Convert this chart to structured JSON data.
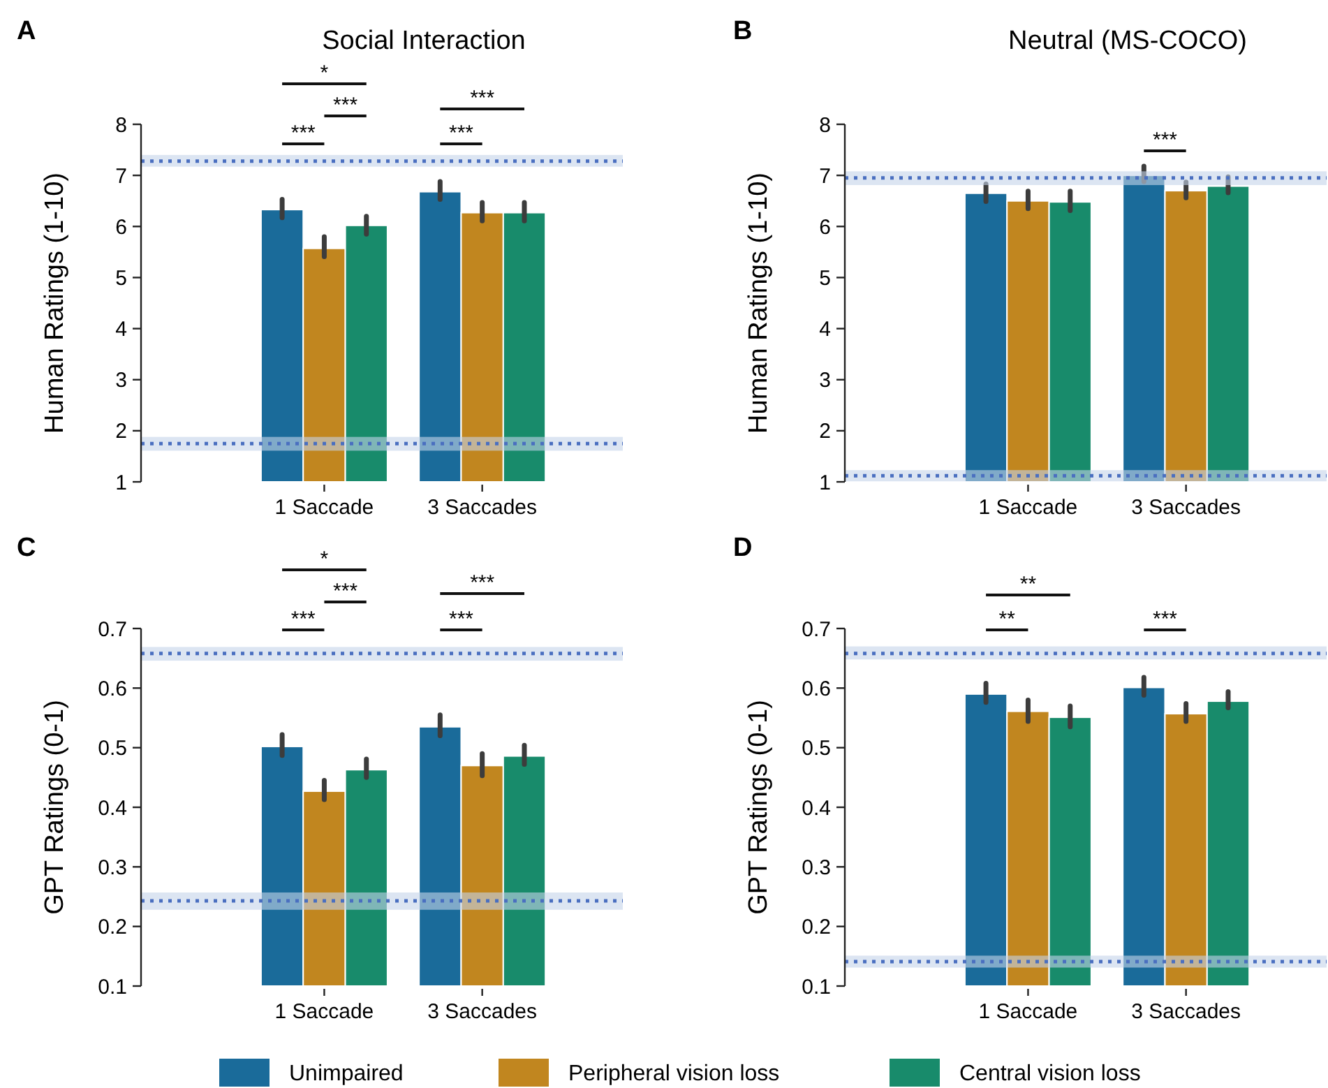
{
  "chart_data": [
    {
      "type": "bar",
      "title": "Social Interaction",
      "ylabel": "Human Ratings (1-10)",
      "categories": [
        "1 Saccade",
        "3 Saccades"
      ],
      "ylim": [
        1,
        8
      ],
      "yticks": [
        1,
        2,
        3,
        4,
        5,
        6,
        7,
        8
      ],
      "legend": "bottom",
      "grid": false,
      "series": [
        {
          "name": "Unimpaired",
          "color": "#1a6b9a",
          "values": [
            6.33,
            6.68
          ],
          "errors": [
            [
              6.17,
              6.53
            ],
            [
              6.53,
              6.88
            ]
          ]
        },
        {
          "name": "Peripheral vision loss",
          "color": "#c1861f",
          "values": [
            5.57,
            6.27
          ],
          "errors": [
            [
              5.41,
              5.8
            ],
            [
              6.11,
              6.47
            ]
          ]
        },
        {
          "name": "Central vision loss",
          "color": "#188b6b",
          "values": [
            6.02,
            6.27
          ],
          "errors": [
            [
              5.85,
              6.2
            ],
            [
              6.11,
              6.47
            ]
          ]
        }
      ],
      "ref_lines": [
        {
          "axis": "y",
          "value": 7.28,
          "color": "#4a6fc0",
          "line_style": "dotted"
        },
        {
          "axis": "y",
          "value": 1.75,
          "color": "#4a6fc0",
          "line_style": "dotted"
        }
      ],
      "bands": [
        {
          "axis": "y",
          "from": 7.17,
          "to": 7.4,
          "color": "#c5d3ea"
        },
        {
          "axis": "y",
          "from": 1.61,
          "to": 1.88,
          "color": "#c5d3ea"
        }
      ],
      "annotations": [
        "A",
        "***",
        "***",
        "*",
        "***",
        "***"
      ]
    },
    {
      "type": "bar",
      "title": "Neutral (MS-COCO)",
      "ylabel": "Human Ratings (1-10)",
      "categories": [
        "1 Saccade",
        "3 Saccades"
      ],
      "ylim": [
        1,
        8
      ],
      "yticks": [
        1,
        2,
        3,
        4,
        5,
        6,
        7,
        8
      ],
      "grid": false,
      "series": [
        {
          "color": "#1a6b9a",
          "values": [
            6.65,
            7.0
          ],
          "errors": [
            [
              6.49,
              6.83
            ],
            [
              6.88,
              7.18
            ]
          ]
        },
        {
          "color": "#c1861f",
          "values": [
            6.5,
            6.7
          ],
          "errors": [
            [
              6.35,
              6.69
            ],
            [
              6.56,
              6.87
            ]
          ]
        },
        {
          "color": "#188b6b",
          "values": [
            6.48,
            6.79
          ],
          "errors": [
            [
              6.31,
              6.69
            ],
            [
              6.66,
              6.97
            ]
          ]
        }
      ],
      "ref_lines": [
        {
          "axis": "y",
          "value": 6.95,
          "color": "#4a6fc0",
          "line_style": "dotted"
        },
        {
          "axis": "y",
          "value": 1.12,
          "color": "#4a6fc0",
          "line_style": "dotted"
        }
      ],
      "bands": [
        {
          "axis": "y",
          "from": 6.81,
          "to": 7.08,
          "color": "#c5d3ea"
        },
        {
          "axis": "y",
          "from": 1.01,
          "to": 1.23,
          "color": "#c5d3ea"
        }
      ],
      "annotations": [
        "B",
        "***"
      ]
    },
    {
      "type": "bar",
      "ylabel": "GPT Ratings (0-1)",
      "categories": [
        "1 Saccade",
        "3 Saccades"
      ],
      "ylim": [
        0.1,
        0.7
      ],
      "yticks": [
        0.1,
        0.2,
        0.3,
        0.4,
        0.5,
        0.6,
        0.7
      ],
      "grid": false,
      "series": [
        {
          "color": "#1a6b9a",
          "values": [
            0.502,
            0.535
          ],
          "errors": [
            [
              0.487,
              0.522
            ],
            [
              0.52,
              0.555
            ]
          ]
        },
        {
          "color": "#c1861f",
          "values": [
            0.427,
            0.47
          ],
          "errors": [
            [
              0.413,
              0.445
            ],
            [
              0.453,
              0.49
            ]
          ]
        },
        {
          "color": "#188b6b",
          "values": [
            0.463,
            0.486
          ],
          "errors": [
            [
              0.45,
              0.481
            ],
            [
              0.472,
              0.504
            ]
          ]
        }
      ],
      "ref_lines": [
        {
          "axis": "y",
          "value": 0.658,
          "color": "#4a6fc0",
          "line_style": "dotted"
        },
        {
          "axis": "y",
          "value": 0.243,
          "color": "#4a6fc0",
          "line_style": "dotted"
        }
      ],
      "bands": [
        {
          "axis": "y",
          "from": 0.646,
          "to": 0.669,
          "color": "#c5d3ea"
        },
        {
          "axis": "y",
          "from": 0.228,
          "to": 0.257,
          "color": "#c5d3ea"
        }
      ],
      "annotations": [
        "C",
        "***",
        "***",
        "*",
        "***",
        "***"
      ]
    },
    {
      "type": "bar",
      "ylabel": "GPT Ratings (0-1)",
      "categories": [
        "1 Saccade",
        "3 Saccades"
      ],
      "ylim": [
        0.1,
        0.7
      ],
      "yticks": [
        0.1,
        0.2,
        0.3,
        0.4,
        0.5,
        0.6,
        0.7
      ],
      "grid": false,
      "series": [
        {
          "color": "#1a6b9a",
          "values": [
            0.59,
            0.601
          ],
          "errors": [
            [
              0.576,
              0.608
            ],
            [
              0.588,
              0.618
            ]
          ]
        },
        {
          "color": "#c1861f",
          "values": [
            0.561,
            0.557
          ],
          "errors": [
            [
              0.544,
              0.58
            ],
            [
              0.544,
              0.574
            ]
          ]
        },
        {
          "color": "#188b6b",
          "values": [
            0.551,
            0.578
          ],
          "errors": [
            [
              0.535,
              0.57
            ],
            [
              0.567,
              0.594
            ]
          ]
        }
      ],
      "ref_lines": [
        {
          "axis": "y",
          "value": 0.658,
          "color": "#4a6fc0",
          "line_style": "dotted"
        },
        {
          "axis": "y",
          "value": 0.141,
          "color": "#4a6fc0",
          "line_style": "dotted"
        }
      ],
      "bands": [
        {
          "axis": "y",
          "from": 0.648,
          "to": 0.67,
          "color": "#c5d3ea"
        },
        {
          "axis": "y",
          "from": 0.131,
          "to": 0.151,
          "color": "#c5d3ea"
        }
      ],
      "annotations": [
        "D",
        "**",
        "**",
        "***"
      ]
    }
  ]
}
